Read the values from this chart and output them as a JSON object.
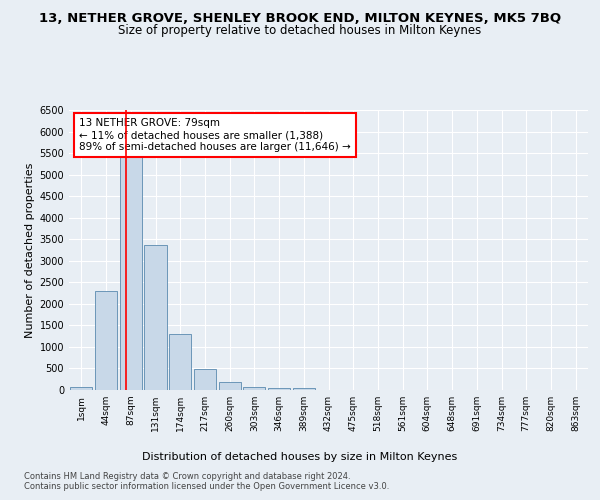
{
  "title_line1": "13, NETHER GROVE, SHENLEY BROOK END, MILTON KEYNES, MK5 7BQ",
  "title_line2": "Size of property relative to detached houses in Milton Keynes",
  "xlabel": "Distribution of detached houses by size in Milton Keynes",
  "ylabel": "Number of detached properties",
  "footer_line1": "Contains HM Land Registry data © Crown copyright and database right 2024.",
  "footer_line2": "Contains public sector information licensed under the Open Government Licence v3.0.",
  "categories": [
    "1sqm",
    "44sqm",
    "87sqm",
    "131sqm",
    "174sqm",
    "217sqm",
    "260sqm",
    "303sqm",
    "346sqm",
    "389sqm",
    "432sqm",
    "475sqm",
    "518sqm",
    "561sqm",
    "604sqm",
    "648sqm",
    "691sqm",
    "734sqm",
    "777sqm",
    "820sqm",
    "863sqm"
  ],
  "values": [
    70,
    2290,
    5400,
    3360,
    1290,
    480,
    185,
    80,
    45,
    45,
    5,
    5,
    0,
    0,
    0,
    0,
    0,
    0,
    0,
    0,
    0
  ],
  "bar_color": "#c8d8e8",
  "bar_edge_color": "#5a8ab0",
  "annotation_text": "13 NETHER GROVE: 79sqm\n← 11% of detached houses are smaller (1,388)\n89% of semi-detached houses are larger (11,646) →",
  "annotation_box_color": "white",
  "annotation_box_edge_color": "red",
  "vline_color": "red",
  "ylim": [
    0,
    6500
  ],
  "yticks": [
    0,
    500,
    1000,
    1500,
    2000,
    2500,
    3000,
    3500,
    4000,
    4500,
    5000,
    5500,
    6000,
    6500
  ],
  "bg_color": "#e8eef4",
  "grid_color": "white",
  "title_fontsize": 9.5,
  "subtitle_fontsize": 8.5,
  "axis_label_fontsize": 8,
  "tick_fontsize": 7,
  "footer_fontsize": 6,
  "annotation_fontsize": 7.5
}
